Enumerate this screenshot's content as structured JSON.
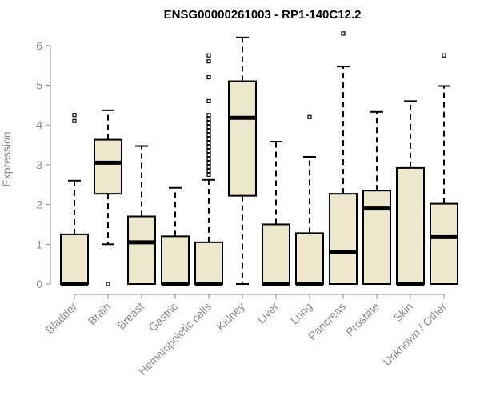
{
  "chart_data": {
    "type": "box",
    "title": "ENSG00000261003 - RP1-140C12.2",
    "xlabel": "",
    "ylabel": "Expression",
    "ylim": [
      0,
      6.2
    ],
    "yticks": [
      0,
      1,
      2,
      3,
      4,
      5,
      6
    ],
    "grid": false,
    "box_fill": "#ede7cd",
    "box_stroke": "#000000",
    "tick_color": "#8c8c8c",
    "categories": [
      "Bladder",
      "Brain",
      "Breast",
      "Gastric",
      "Hematopoietic cells",
      "Kidney",
      "Liver",
      "Lung",
      "Pancreas",
      "Prostate",
      "Skin",
      "Unknown / Other"
    ],
    "boxes": [
      {
        "category": "Bladder",
        "whisker_low": 0,
        "q1": 0,
        "median": 0,
        "q3": 1.25,
        "whisker_high": 2.6,
        "outliers": [
          4.1,
          4.25
        ]
      },
      {
        "category": "Brain",
        "whisker_low": 1.0,
        "q1": 2.27,
        "median": 3.05,
        "q3": 3.63,
        "whisker_high": 4.37,
        "outliers": [
          0
        ]
      },
      {
        "category": "Breast",
        "whisker_low": 0,
        "q1": 0,
        "median": 1.05,
        "q3": 1.7,
        "whisker_high": 3.47,
        "outliers": []
      },
      {
        "category": "Gastric",
        "whisker_low": 0,
        "q1": 0,
        "median": 0,
        "q3": 1.2,
        "whisker_high": 2.42,
        "outliers": []
      },
      {
        "category": "Hematopoietic cells",
        "whisker_low": 0,
        "q1": 0,
        "median": 0,
        "q3": 1.05,
        "whisker_high": 2.62,
        "outliers": [
          2.75,
          2.85,
          2.95,
          3.05,
          3.15,
          3.25,
          3.35,
          3.45,
          3.55,
          3.65,
          3.75,
          3.85,
          3.95,
          4.05,
          4.15,
          4.25,
          4.6,
          5.2,
          5.6,
          5.75
        ]
      },
      {
        "category": "Kidney",
        "whisker_low": 0,
        "q1": 2.22,
        "median": 4.18,
        "q3": 5.1,
        "whisker_high": 6.2,
        "outliers": []
      },
      {
        "category": "Liver",
        "whisker_low": 0,
        "q1": 0,
        "median": 0,
        "q3": 1.5,
        "whisker_high": 3.58,
        "outliers": []
      },
      {
        "category": "Lung",
        "whisker_low": 0,
        "q1": 0,
        "median": 0,
        "q3": 1.28,
        "whisker_high": 3.2,
        "outliers": [
          4.2
        ]
      },
      {
        "category": "Pancreas",
        "whisker_low": 0,
        "q1": 0,
        "median": 0.8,
        "q3": 2.27,
        "whisker_high": 5.47,
        "outliers": [
          6.3
        ]
      },
      {
        "category": "Prostate",
        "whisker_low": 0,
        "q1": 0,
        "median": 1.9,
        "q3": 2.35,
        "whisker_high": 4.33,
        "outliers": []
      },
      {
        "category": "Skin",
        "whisker_low": 0,
        "q1": 0,
        "median": 0,
        "q3": 2.92,
        "whisker_high": 4.6,
        "outliers": []
      },
      {
        "category": "Unknown / Other",
        "whisker_low": 0,
        "q1": 0,
        "median": 1.18,
        "q3": 2.02,
        "whisker_high": 4.98,
        "outliers": [
          5.75
        ]
      }
    ]
  }
}
